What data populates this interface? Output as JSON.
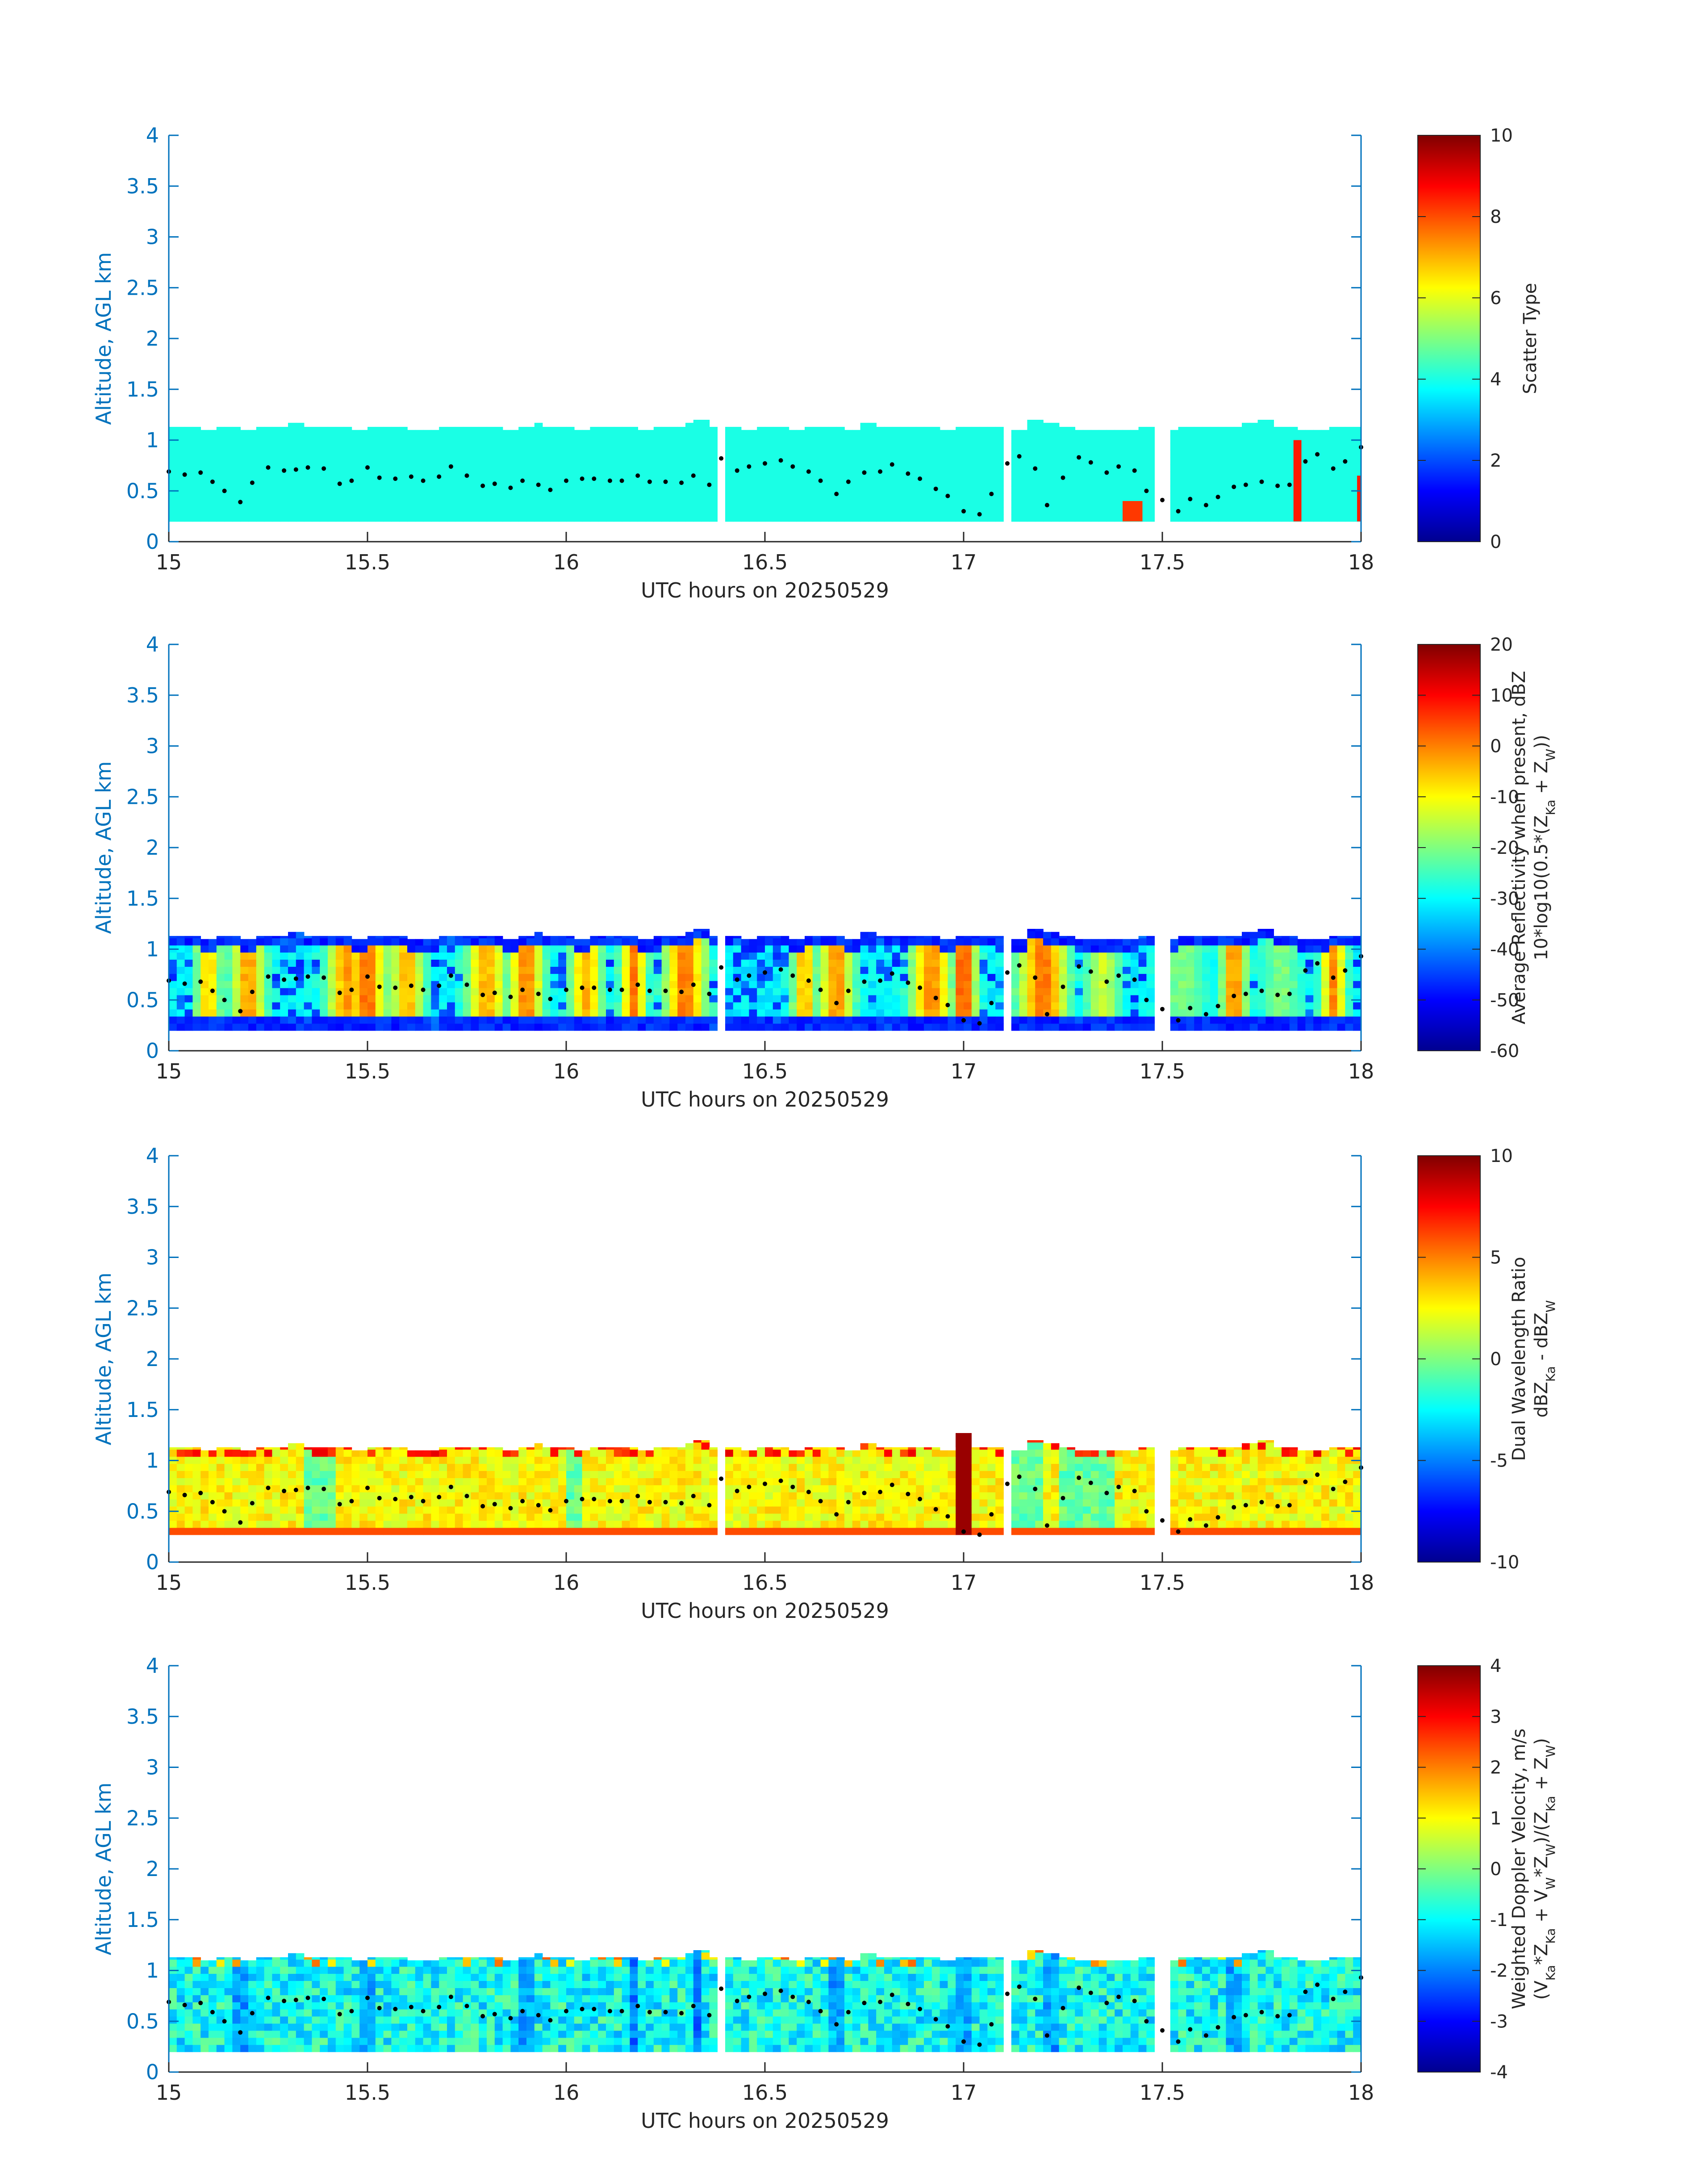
{
  "figure": {
    "xlabel": "UTC hours on 20250529",
    "ylabel": "Altitude, AGL km",
    "axis_color": "#0072BD"
  },
  "chart_data": [
    {
      "type": "heatmap",
      "xlabel": "UTC hours on 20250529",
      "ylabel": "Altitude, AGL km",
      "xlim": [
        15,
        18
      ],
      "ylim": [
        0,
        4
      ],
      "x_ticks": [
        "15",
        "15.5",
        "16",
        "16.5",
        "17",
        "17.5",
        "18"
      ],
      "y_ticks": [
        "0",
        "0.5",
        "1",
        "1.5",
        "2",
        "2.5",
        "3",
        "3.5",
        "4"
      ],
      "colorbar": {
        "label_lines": [
          "Scatter Type"
        ],
        "range": [
          0,
          10
        ],
        "ticks": [
          "0",
          "2",
          "4",
          "6",
          "8",
          "10"
        ],
        "colormap": "jet"
      },
      "field": {
        "kind": "scatter_type",
        "layer_bottom_km": 0.2,
        "cloud_top_km": [
          1.13,
          1.13,
          1.1,
          1.13,
          1.13,
          1.1,
          1.13,
          1.13,
          1.17,
          1.13,
          1.13,
          1.13,
          1.1,
          1.13,
          1.13,
          1.13,
          1.1,
          1.1,
          1.13,
          1.13,
          1.13,
          1.13,
          1.1,
          1.13,
          1.17,
          1.13,
          1.13,
          1.1,
          1.13,
          1.13,
          1.13,
          1.1,
          1.13,
          1.13,
          1.17,
          1.2,
          1.13,
          1.13,
          1.1,
          1.13,
          1.13,
          1.1,
          1.13,
          1.13,
          1.13,
          1.1,
          1.17,
          1.13,
          1.13,
          1.13,
          1.13,
          1.1,
          1.13,
          1.13,
          1.13,
          1.13,
          1.1,
          1.2,
          1.17,
          1.13,
          1.1,
          1.1,
          1.1,
          1.1,
          1.13,
          1.13,
          1.1,
          1.13,
          1.13,
          1.13,
          1.13,
          1.17,
          1.2,
          1.13,
          1.13,
          1.1,
          1.1,
          1.13,
          1.13
        ],
        "value": 4,
        "gaps": [
          [
            16.38,
            16.4
          ],
          [
            17.1,
            17.12
          ],
          [
            17.48,
            17.52
          ]
        ],
        "special": [
          {
            "x": [
              17.4,
              17.45
            ],
            "top": 0.4,
            "value": 8.2
          },
          {
            "x": [
              17.83,
              17.85
            ],
            "top": 1.0,
            "value": 8.5
          },
          {
            "x": [
              17.99,
              18.0
            ],
            "top": 0.65,
            "value": 8.5
          }
        ]
      }
    },
    {
      "type": "heatmap",
      "xlabel": "UTC hours on 20250529",
      "ylabel": "Altitude, AGL km",
      "xlim": [
        15,
        18
      ],
      "ylim": [
        0,
        4
      ],
      "x_ticks": [
        "15",
        "15.5",
        "16",
        "16.5",
        "17",
        "17.5",
        "18"
      ],
      "y_ticks": [
        "0",
        "0.5",
        "1",
        "1.5",
        "2",
        "2.5",
        "3",
        "3.5",
        "4"
      ],
      "colorbar": {
        "label_lines": [
          "Average Reflectivity when present, dBZ",
          "10*log10(0.5*(Z_{Ka} + Z_{W}))"
        ],
        "range": [
          -60,
          20
        ],
        "ticks": [
          "-60",
          "-50",
          "-40",
          "-30",
          "-20",
          "-10",
          "0",
          "10",
          "20"
        ],
        "colormap": "jet"
      },
      "field": {
        "kind": "reflectivity",
        "layer_bottom_km": 0.2,
        "cloud_top_km": [
          1.13,
          1.13,
          1.1,
          1.13,
          1.13,
          1.1,
          1.13,
          1.13,
          1.17,
          1.13,
          1.13,
          1.13,
          1.1,
          1.13,
          1.13,
          1.13,
          1.1,
          1.1,
          1.13,
          1.13,
          1.13,
          1.13,
          1.1,
          1.13,
          1.17,
          1.13,
          1.13,
          1.1,
          1.13,
          1.13,
          1.13,
          1.1,
          1.13,
          1.13,
          1.17,
          1.2,
          1.13,
          1.13,
          1.1,
          1.13,
          1.13,
          1.1,
          1.13,
          1.13,
          1.13,
          1.1,
          1.17,
          1.13,
          1.13,
          1.13,
          1.13,
          1.1,
          1.13,
          1.13,
          1.13,
          1.13,
          1.1,
          1.2,
          1.17,
          1.13,
          1.1,
          1.1,
          1.1,
          1.1,
          1.13,
          1.13,
          1.1,
          1.13,
          1.13,
          1.13,
          1.13,
          1.17,
          1.2,
          1.13,
          1.13,
          1.1,
          1.1,
          1.13,
          1.13
        ],
        "cores": [
          [
            15.1,
            0.03,
            -8
          ],
          [
            15.2,
            0.04,
            -4
          ],
          [
            15.45,
            0.05,
            -4
          ],
          [
            15.5,
            0.04,
            0
          ],
          [
            15.6,
            0.04,
            -6
          ],
          [
            15.8,
            0.05,
            -6
          ],
          [
            15.9,
            0.04,
            -2
          ],
          [
            16.05,
            0.04,
            -6
          ],
          [
            16.17,
            0.03,
            -1
          ],
          [
            16.3,
            0.05,
            -1
          ],
          [
            16.6,
            0.03,
            -6
          ],
          [
            16.68,
            0.04,
            -3
          ],
          [
            16.92,
            0.05,
            -3
          ],
          [
            17.0,
            0.03,
            3
          ],
          [
            17.2,
            0.06,
            -1
          ],
          [
            17.35,
            0.04,
            -16
          ],
          [
            17.55,
            0.06,
            -22
          ],
          [
            17.68,
            0.03,
            -2
          ],
          [
            17.8,
            0.05,
            -22
          ],
          [
            17.93,
            0.03,
            -3
          ]
        ],
        "gaps": [
          [
            16.38,
            16.4
          ],
          [
            17.1,
            17.12
          ],
          [
            17.48,
            17.52
          ]
        ]
      }
    },
    {
      "type": "heatmap",
      "xlabel": "UTC hours on 20250529",
      "ylabel": "Altitude, AGL km",
      "xlim": [
        15,
        18
      ],
      "ylim": [
        0,
        4
      ],
      "x_ticks": [
        "15",
        "15.5",
        "16",
        "16.5",
        "17",
        "17.5",
        "18"
      ],
      "y_ticks": [
        "0",
        "0.5",
        "1",
        "1.5",
        "2",
        "2.5",
        "3",
        "3.5",
        "4"
      ],
      "colorbar": {
        "label_lines": [
          "Dual Wavelength Ratio",
          "dBZ_{Ka} - dBZ_{W}"
        ],
        "range": [
          -10,
          10
        ],
        "ticks": [
          "-10",
          "-5",
          "0",
          "5",
          "10"
        ],
        "colormap": "jet"
      },
      "field": {
        "kind": "dwr",
        "layer_bottom_km": 0.27,
        "cloud_top_km": [
          1.13,
          1.13,
          1.1,
          1.13,
          1.13,
          1.1,
          1.13,
          1.13,
          1.17,
          1.13,
          1.13,
          1.13,
          1.1,
          1.13,
          1.13,
          1.13,
          1.1,
          1.1,
          1.13,
          1.13,
          1.13,
          1.13,
          1.1,
          1.13,
          1.17,
          1.13,
          1.13,
          1.1,
          1.13,
          1.13,
          1.13,
          1.1,
          1.13,
          1.13,
          1.17,
          1.2,
          1.13,
          1.13,
          1.1,
          1.13,
          1.13,
          1.1,
          1.13,
          1.13,
          1.13,
          1.1,
          1.17,
          1.13,
          1.13,
          1.13,
          1.13,
          1.1,
          1.13,
          1.13,
          1.13,
          1.13,
          1.1,
          1.2,
          1.17,
          1.13,
          1.1,
          1.1,
          1.1,
          1.1,
          1.13,
          1.13,
          1.1,
          1.13,
          1.13,
          1.13,
          1.13,
          1.17,
          1.2,
          1.13,
          1.13,
          1.1,
          1.1,
          1.13,
          1.13
        ],
        "base_value": 2.5,
        "green_zones": [
          [
            15.34,
            15.42
          ],
          [
            16.0,
            16.05
          ],
          [
            17.12,
            17.2
          ],
          [
            17.25,
            17.38
          ]
        ],
        "spike": {
          "x": [
            16.98,
            17.02
          ],
          "value": 9.5,
          "top": 1.27
        },
        "gaps": [
          [
            16.38,
            16.4
          ],
          [
            17.1,
            17.12
          ],
          [
            17.48,
            17.52
          ]
        ]
      }
    },
    {
      "type": "heatmap",
      "xlabel": "UTC hours on 20250529",
      "ylabel": "Altitude, AGL km",
      "xlim": [
        15,
        18
      ],
      "ylim": [
        0,
        4
      ],
      "x_ticks": [
        "15",
        "15.5",
        "16",
        "16.5",
        "17",
        "17.5",
        "18"
      ],
      "y_ticks": [
        "0",
        "0.5",
        "1",
        "1.5",
        "2",
        "2.5",
        "3",
        "3.5",
        "4"
      ],
      "colorbar": {
        "label_lines": [
          "Weighted Doppler Velocity, m/s",
          "(V_{Ka}*Z_{Ka} + V_{W}*Z_{W})/(Z_{Ka} + Z_{W})"
        ],
        "range": [
          -4,
          4
        ],
        "ticks": [
          "-4",
          "-3",
          "-2",
          "-1",
          "0",
          "1",
          "2",
          "3",
          "4"
        ],
        "colormap": "jet"
      },
      "field": {
        "kind": "velocity",
        "layer_bottom_km": 0.2,
        "cloud_top_km": [
          1.13,
          1.13,
          1.1,
          1.13,
          1.13,
          1.1,
          1.13,
          1.13,
          1.17,
          1.13,
          1.13,
          1.13,
          1.1,
          1.13,
          1.13,
          1.13,
          1.1,
          1.1,
          1.13,
          1.13,
          1.13,
          1.13,
          1.1,
          1.13,
          1.17,
          1.13,
          1.13,
          1.1,
          1.13,
          1.13,
          1.13,
          1.1,
          1.13,
          1.13,
          1.17,
          1.2,
          1.13,
          1.13,
          1.1,
          1.13,
          1.13,
          1.1,
          1.13,
          1.13,
          1.13,
          1.1,
          1.17,
          1.13,
          1.13,
          1.13,
          1.13,
          1.1,
          1.13,
          1.13,
          1.13,
          1.13,
          1.1,
          1.2,
          1.17,
          1.13,
          1.1,
          1.1,
          1.1,
          1.1,
          1.13,
          1.13,
          1.1,
          1.13,
          1.13,
          1.13,
          1.13,
          1.17,
          1.2,
          1.13,
          1.13,
          1.1,
          1.1,
          1.13,
          1.13
        ],
        "base_value": -0.9,
        "blue_streaks": [
          15.18,
          15.5,
          15.9,
          16.17,
          16.33,
          16.68,
          17.0,
          17.22,
          17.68
        ],
        "gaps": [
          [
            16.38,
            16.4
          ],
          [
            17.1,
            17.12
          ],
          [
            17.48,
            17.52
          ]
        ]
      }
    }
  ],
  "cloud_base_series": {
    "x": [
      15.0,
      15.04,
      15.08,
      15.11,
      15.14,
      15.18,
      15.21,
      15.25,
      15.29,
      15.32,
      15.35,
      15.39,
      15.43,
      15.46,
      15.5,
      15.53,
      15.57,
      15.61,
      15.64,
      15.68,
      15.71,
      15.75,
      15.79,
      15.82,
      15.86,
      15.89,
      15.93,
      15.96,
      16.0,
      16.04,
      16.07,
      16.11,
      16.14,
      16.18,
      16.21,
      16.25,
      16.29,
      16.32,
      16.36,
      16.39,
      16.43,
      16.46,
      16.5,
      16.54,
      16.57,
      16.61,
      16.64,
      16.68,
      16.71,
      16.75,
      16.79,
      16.82,
      16.86,
      16.89,
      16.93,
      16.96,
      17.0,
      17.04,
      17.07,
      17.11,
      17.14,
      17.18,
      17.21,
      17.25,
      17.29,
      17.32,
      17.36,
      17.39,
      17.43,
      17.46,
      17.5,
      17.54,
      17.57,
      17.61,
      17.64,
      17.68,
      17.71,
      17.75,
      17.79,
      17.82,
      17.86,
      17.89,
      17.93,
      17.96,
      18.0
    ],
    "y": [
      0.69,
      0.66,
      0.68,
      0.59,
      0.5,
      0.39,
      0.58,
      0.73,
      0.7,
      0.71,
      0.73,
      0.72,
      0.57,
      0.6,
      0.73,
      0.63,
      0.62,
      0.64,
      0.6,
      0.64,
      0.74,
      0.65,
      0.55,
      0.57,
      0.53,
      0.6,
      0.56,
      0.51,
      0.6,
      0.62,
      0.62,
      0.6,
      0.6,
      0.65,
      0.59,
      0.59,
      0.58,
      0.65,
      0.56,
      0.82,
      0.7,
      0.74,
      0.77,
      0.8,
      0.74,
      0.69,
      0.6,
      0.47,
      0.59,
      0.68,
      0.69,
      0.76,
      0.67,
      0.62,
      0.52,
      0.45,
      0.3,
      0.27,
      0.47,
      0.77,
      0.84,
      0.72,
      0.36,
      0.63,
      0.83,
      0.78,
      0.68,
      0.74,
      0.7,
      0.5,
      0.41,
      0.3,
      0.42,
      0.36,
      0.44,
      0.54,
      0.56,
      0.59,
      0.55,
      0.56,
      0.79,
      0.86,
      0.72,
      0.79,
      0.93
    ]
  }
}
